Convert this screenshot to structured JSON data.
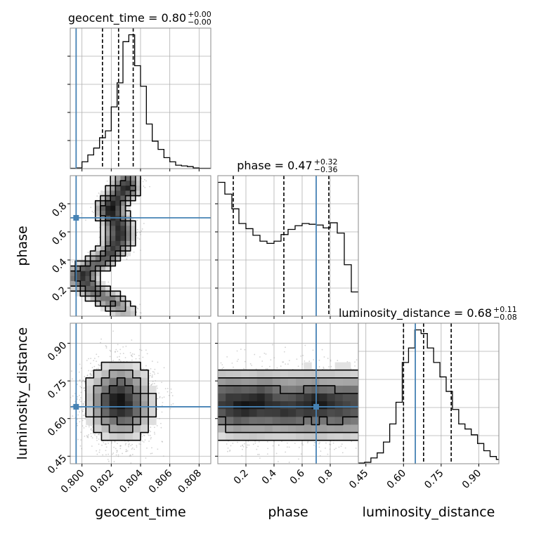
{
  "chart_data": {
    "type": "corner",
    "parameters": [
      "geocent_time",
      "phase",
      "luminosity_distance"
    ],
    "truths": {
      "geocent_time": 0.7996,
      "phase": 0.7,
      "luminosity_distance": 0.647
    },
    "titles": [
      {
        "param": "geocent_time",
        "label": "geocent_time = 0.80",
        "sup": "+0.00",
        "sub": "−0.00"
      },
      {
        "param": "phase",
        "label": "phase = 0.47",
        "sup": "+0.32",
        "sub": "−0.36"
      },
      {
        "param": "luminosity_distance",
        "label": "luminosity_distance = 0.68",
        "sup": "+0.11",
        "sub": "−0.08"
      }
    ],
    "axes": {
      "geocent_time": {
        "range": [
          0.7992,
          0.8088
        ],
        "ticks": [
          0.8,
          0.802,
          0.804,
          0.806,
          0.808
        ],
        "tick_labels": [
          "0.800",
          "0.802",
          "0.804",
          "0.806",
          "0.808"
        ],
        "xlabel": "geocent_time"
      },
      "phase": {
        "range": [
          0.0,
          1.0
        ],
        "ticks": [
          0.2,
          0.4,
          0.6,
          0.8
        ],
        "tick_labels": [
          "0.2",
          "0.4",
          "0.6",
          "0.8"
        ],
        "xlabel": "phase",
        "ylabel": "phase"
      },
      "luminosity_distance": {
        "range": [
          0.42,
          0.98
        ],
        "ticks": [
          0.45,
          0.6,
          0.75,
          0.9
        ],
        "tick_labels": [
          "0.45",
          "0.60",
          "0.75",
          "0.90"
        ],
        "xlabel": "luminosity_distance",
        "ylabel": "luminosity_distance"
      }
    },
    "histograms": {
      "geocent_time": {
        "bin_edges": [
          0.7992,
          0.7996,
          0.8,
          0.8004,
          0.8008,
          0.8012,
          0.8016,
          0.802,
          0.8024,
          0.8028,
          0.8032,
          0.8036,
          0.804,
          0.8044,
          0.8048,
          0.8052,
          0.8056,
          0.806,
          0.8064,
          0.8068,
          0.8072,
          0.8076,
          0.808,
          0.8084,
          0.8088
        ],
        "counts": [
          0.5,
          1,
          10,
          20,
          30,
          45,
          55,
          90,
          125,
          185,
          195,
          150,
          120,
          65,
          40,
          28,
          16,
          10,
          5,
          4,
          3,
          1,
          0.5,
          0.5
        ],
        "quantile_lines": [
          0.8014,
          0.8025,
          0.8035
        ]
      },
      "phase": {
        "bin_edges": [
          0.0,
          0.05,
          0.1,
          0.15,
          0.2,
          0.25,
          0.3,
          0.35,
          0.4,
          0.45,
          0.5,
          0.55,
          0.6,
          0.65,
          0.7,
          0.75,
          0.8,
          0.85,
          0.9,
          0.95,
          1.0
        ],
        "counts": [
          182,
          166,
          146,
          126,
          119,
          110,
          102,
          99,
          102,
          111,
          118,
          123,
          126,
          125,
          124,
          120,
          127,
          113,
          70,
          33
        ],
        "quantile_lines": [
          0.11,
          0.47,
          0.79
        ]
      },
      "luminosity_distance": {
        "bin_edges": [
          0.42,
          0.445,
          0.47,
          0.495,
          0.52,
          0.545,
          0.57,
          0.595,
          0.62,
          0.645,
          0.67,
          0.695,
          0.72,
          0.745,
          0.77,
          0.795,
          0.82,
          0.845,
          0.87,
          0.895,
          0.92,
          0.945,
          0.97,
          0.98
        ],
        "counts": [
          1,
          2,
          8,
          15,
          30,
          55,
          85,
          140,
          160,
          185,
          180,
          160,
          140,
          120,
          100,
          75,
          55,
          48,
          40,
          28,
          18,
          10,
          6
        ],
        "quantile_lines": [
          0.6,
          0.68,
          0.79
        ]
      }
    },
    "contour_panels": [
      {
        "x": "geocent_time",
        "y": "phase",
        "description": "S-shaped ridge: phase 0.9 near 0.8028, 0.75 near 0.8022, 0.55 near 0.8026, 0.3 near 0.7998, 0.15 near 0.8012, 0.05 near 0.8032"
      },
      {
        "x": "geocent_time",
        "y": "luminosity_distance",
        "center": [
          0.8026,
          0.66
        ]
      },
      {
        "x": "phase",
        "y": "luminosity_distance",
        "center": [
          0.5,
          0.65
        ]
      }
    ]
  }
}
